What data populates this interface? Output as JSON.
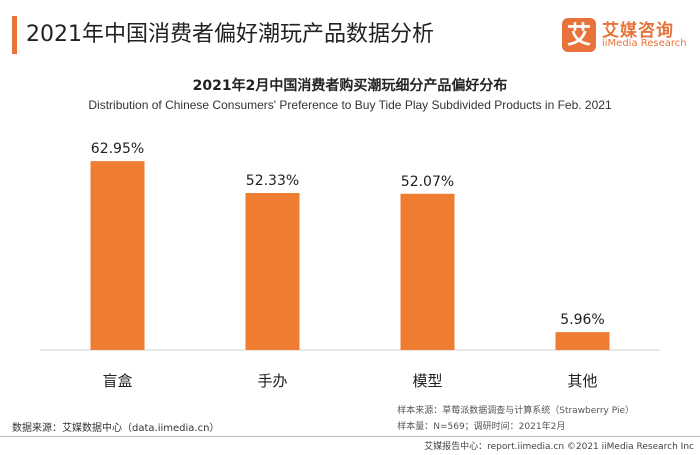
{
  "header": {
    "title": "2021年中国消费者偏好潮玩产品数据分析"
  },
  "logo": {
    "mark": "艾",
    "name_cn": "艾媒咨询",
    "name_en": "iiMedia Research"
  },
  "colors": {
    "accent": "#e8733a",
    "bar": "#ee7d31",
    "axis": "#d0d0d0"
  },
  "chart_data": {
    "type": "bar",
    "title": "2021年2月中国消费者购买潮玩细分产品偏好分布",
    "subtitle": "Distribution of Chinese Consumers' Preference to Buy Tide Play Subdivided Products in Feb. 2021",
    "categories": [
      "盲盒",
      "手办",
      "模型",
      "其他"
    ],
    "values": [
      62.95,
      52.33,
      52.07,
      5.96
    ],
    "value_labels": [
      "62.95%",
      "52.33%",
      "52.07%",
      "5.96%"
    ],
    "unit": "%",
    "ylim": [
      0,
      70
    ],
    "grid": false,
    "legend": "none"
  },
  "footer": {
    "source_left": "数据来源：艾媒数据中心（data.iimedia.cn）",
    "sample_source": "样本来源：草莓派数据调查与计算系统（Strawberry Pie）",
    "sample_info": "样本量：N=569；调研时间：2021年2月",
    "report": "艾媒报告中心：report.iimedia.cn  ©2021  iiMedia Research  Inc"
  }
}
